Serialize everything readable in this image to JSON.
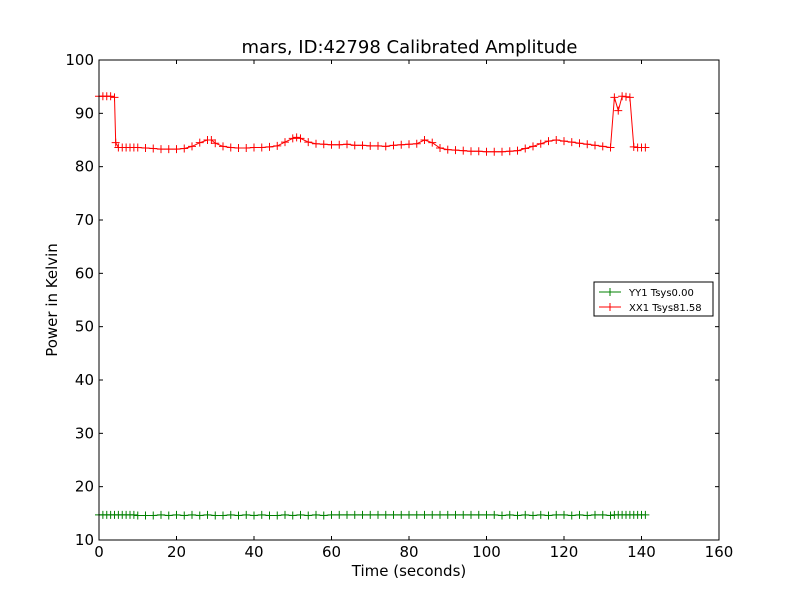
{
  "chart_data": {
    "type": "line",
    "title": "mars, ID:42798 Calibrated Amplitude",
    "xlabel": "Time (seconds)",
    "ylabel": "Power in Kelvin",
    "xlim": [
      0,
      160
    ],
    "ylim": [
      10,
      100
    ],
    "xticks": [
      0,
      20,
      40,
      60,
      80,
      100,
      120,
      140,
      160
    ],
    "yticks": [
      10,
      20,
      30,
      40,
      50,
      60,
      70,
      80,
      90,
      100
    ],
    "grid": false,
    "legend_position": "right",
    "marker": "+",
    "series": [
      {
        "name": "YY1 Tsys0.00",
        "color": "#008000",
        "x": [
          0,
          1,
          2,
          3,
          4,
          5,
          6,
          7,
          8,
          9,
          10,
          12,
          14,
          16,
          18,
          20,
          22,
          24,
          26,
          28,
          30,
          32,
          34,
          36,
          38,
          40,
          42,
          44,
          46,
          48,
          50,
          52,
          54,
          56,
          58,
          60,
          62,
          64,
          66,
          68,
          70,
          72,
          74,
          76,
          78,
          80,
          82,
          84,
          86,
          88,
          90,
          92,
          94,
          96,
          98,
          100,
          102,
          104,
          106,
          108,
          110,
          112,
          114,
          116,
          118,
          120,
          122,
          124,
          126,
          128,
          130,
          132,
          133,
          134,
          135,
          136,
          137,
          138,
          139,
          140,
          141
        ],
        "y": [
          14.7,
          14.7,
          14.7,
          14.7,
          14.7,
          14.7,
          14.7,
          14.7,
          14.7,
          14.7,
          14.6,
          14.6,
          14.6,
          14.7,
          14.6,
          14.7,
          14.6,
          14.7,
          14.6,
          14.7,
          14.6,
          14.6,
          14.7,
          14.6,
          14.7,
          14.6,
          14.7,
          14.6,
          14.6,
          14.7,
          14.6,
          14.7,
          14.6,
          14.7,
          14.6,
          14.7,
          14.7,
          14.7,
          14.7,
          14.7,
          14.7,
          14.7,
          14.7,
          14.7,
          14.7,
          14.7,
          14.7,
          14.7,
          14.7,
          14.7,
          14.7,
          14.7,
          14.7,
          14.7,
          14.7,
          14.7,
          14.7,
          14.6,
          14.7,
          14.6,
          14.7,
          14.6,
          14.7,
          14.6,
          14.7,
          14.7,
          14.6,
          14.7,
          14.6,
          14.7,
          14.7,
          14.6,
          14.7,
          14.7,
          14.7,
          14.7,
          14.7,
          14.7,
          14.7,
          14.7,
          14.7
        ]
      },
      {
        "name": "XX1 Tsys81.58",
        "color": "#ff0000",
        "x": [
          0,
          1,
          2,
          3,
          4,
          4.3,
          5,
          6,
          7,
          8,
          9,
          10,
          12,
          14,
          16,
          18,
          20,
          22,
          24,
          26,
          28,
          29,
          30,
          32,
          34,
          36,
          38,
          40,
          42,
          44,
          46,
          48,
          50,
          51,
          52,
          54,
          56,
          58,
          60,
          62,
          64,
          66,
          68,
          70,
          72,
          74,
          76,
          78,
          80,
          82,
          84,
          86,
          88,
          90,
          92,
          94,
          96,
          98,
          100,
          102,
          104,
          106,
          108,
          110,
          112,
          114,
          116,
          118,
          120,
          122,
          124,
          126,
          128,
          130,
          132,
          133,
          134,
          135,
          136,
          137,
          138,
          139,
          140,
          141
        ],
        "y": [
          93.2,
          93.2,
          93.2,
          93.2,
          93.0,
          84.5,
          83.6,
          83.6,
          83.6,
          83.6,
          83.6,
          83.6,
          83.5,
          83.4,
          83.3,
          83.3,
          83.3,
          83.4,
          83.8,
          84.5,
          85.0,
          85.0,
          84.4,
          83.8,
          83.6,
          83.5,
          83.5,
          83.6,
          83.6,
          83.7,
          83.9,
          84.6,
          85.3,
          85.5,
          85.3,
          84.6,
          84.3,
          84.2,
          84.1,
          84.1,
          84.2,
          84.0,
          84.0,
          83.9,
          83.9,
          83.8,
          84.0,
          84.1,
          84.2,
          84.3,
          85.0,
          84.5,
          83.5,
          83.2,
          83.1,
          83.0,
          82.9,
          82.9,
          82.8,
          82.8,
          82.8,
          82.9,
          83.0,
          83.4,
          83.8,
          84.3,
          84.8,
          85.0,
          84.8,
          84.6,
          84.4,
          84.2,
          84.0,
          83.8,
          83.6,
          93.0,
          90.5,
          93.2,
          93.1,
          93.0,
          83.7,
          83.6,
          83.6,
          83.6
        ]
      }
    ]
  }
}
